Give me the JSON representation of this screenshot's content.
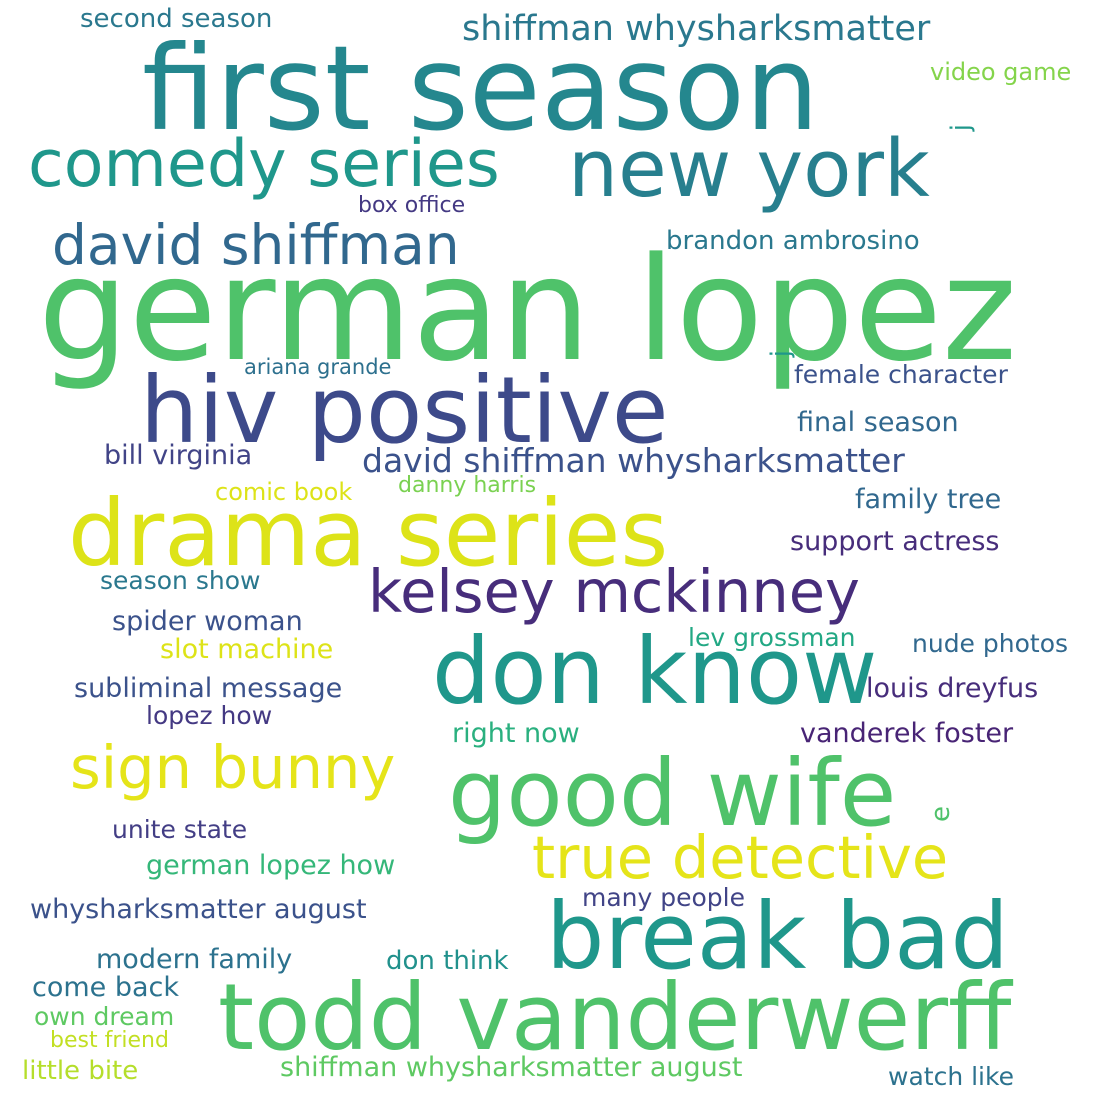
{
  "words": [
    {
      "text": "german lopez",
      "color": "#4fc26a"
    },
    {
      "text": "first season",
      "color": "#24878e"
    },
    {
      "text": "drama series",
      "color": "#dde318"
    },
    {
      "text": "hiv positive",
      "color": "#3d4a8a"
    },
    {
      "text": "todd vanderwerff",
      "color": "#4fc26a"
    },
    {
      "text": "good wife",
      "color": "#4fc26a"
    },
    {
      "text": "don know",
      "color": "#1f978b"
    },
    {
      "text": "break bad",
      "color": "#1f978b"
    },
    {
      "text": "new york",
      "color": "#277f8e"
    },
    {
      "text": "comedy series",
      "color": "#1f978b"
    },
    {
      "text": "kelsey mckinney",
      "color": "#472d7b"
    },
    {
      "text": "true detective",
      "color": "#e5e419"
    },
    {
      "text": "sign bunny",
      "color": "#e5e419"
    },
    {
      "text": "david shiffman",
      "color": "#31688e"
    },
    {
      "text": "shiffman whysharksmatter",
      "color": "#2a788e"
    },
    {
      "text": "david shiffman whysharksmatter",
      "color": "#3b528b"
    },
    {
      "text": "video game",
      "color": "#84d44b"
    },
    {
      "text": "second season",
      "color": "#2a788e"
    },
    {
      "text": "box office",
      "color": "#443983"
    },
    {
      "text": "brandon ambrosino",
      "color": "#2a788e"
    },
    {
      "text": "ariana grande",
      "color": "#2d708e"
    },
    {
      "text": "female character",
      "color": "#3b528b"
    },
    {
      "text": "final season",
      "color": "#31688e"
    },
    {
      "text": "bill virginia",
      "color": "#414487"
    },
    {
      "text": "comic book",
      "color": "#dde318"
    },
    {
      "text": "danny harris",
      "color": "#7ad151"
    },
    {
      "text": "family tree",
      "color": "#31688e"
    },
    {
      "text": "support actress",
      "color": "#472d7b"
    },
    {
      "text": "season show",
      "color": "#2a788e"
    },
    {
      "text": "spider woman",
      "color": "#3b528b"
    },
    {
      "text": "slot machine",
      "color": "#dde318"
    },
    {
      "text": "lev grossman",
      "color": "#22a884"
    },
    {
      "text": "nude photos",
      "color": "#31688e"
    },
    {
      "text": "subliminal message",
      "color": "#3b528b"
    },
    {
      "text": "louis dreyfus",
      "color": "#472d7b"
    },
    {
      "text": "lopez how",
      "color": "#443983"
    },
    {
      "text": "right now",
      "color": "#2ab07f"
    },
    {
      "text": "vanderek foster",
      "color": "#482475"
    },
    {
      "text": "unite state",
      "color": "#433e85"
    },
    {
      "text": "german lopez how",
      "color": "#35b779"
    },
    {
      "text": "whysharksmatter august",
      "color": "#3b528b"
    },
    {
      "text": "many people",
      "color": "#414487"
    },
    {
      "text": "modern family",
      "color": "#2c728e"
    },
    {
      "text": "don think",
      "color": "#21918c"
    },
    {
      "text": "come back",
      "color": "#2c728e"
    },
    {
      "text": "own dream",
      "color": "#5ec962"
    },
    {
      "text": "best friend",
      "color": "#c2df23"
    },
    {
      "text": "little bite",
      "color": "#b5de2b"
    },
    {
      "text": "shiffman whysharksmatter august",
      "color": "#5ec962"
    },
    {
      "text": "watch like",
      "color": "#2c728e"
    },
    {
      "text": "j",
      "color": "#1f978b"
    },
    {
      "text": "j",
      "color": "#1f978b"
    },
    {
      "text": "e",
      "color": "#4fc26a"
    }
  ]
}
